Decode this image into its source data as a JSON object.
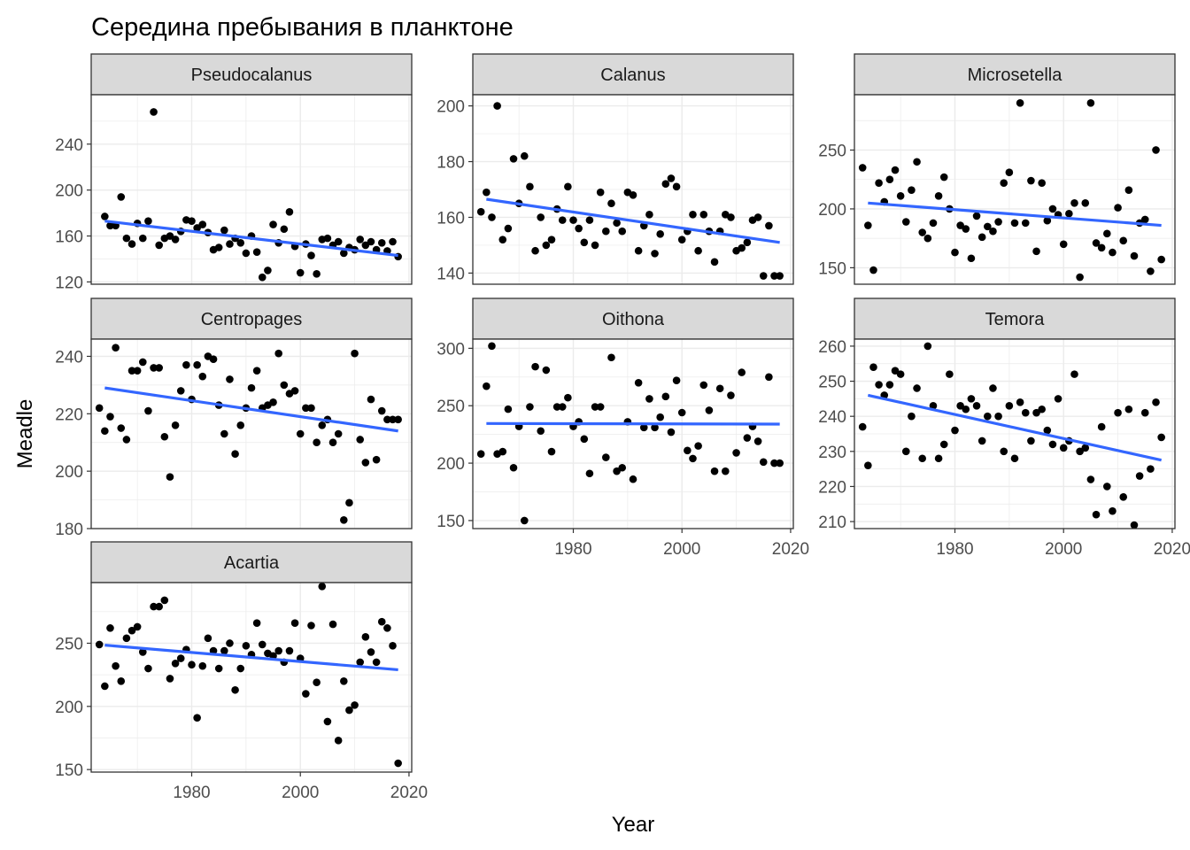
{
  "chart_data": {
    "type": "scatter",
    "title": "Середина пребывания в планктоне",
    "xlabel": "Year",
    "ylabel": "Meadle",
    "x_ticks": [
      1980,
      2000,
      2020
    ],
    "xlim": [
      1961.5,
      2020.5
    ],
    "grid": true,
    "colors": {
      "points": "#000000",
      "trend": "#3366FF",
      "strip_bg": "#D9D9D9",
      "grid": "#EBEBEB",
      "border": "#333333"
    },
    "panels": [
      {
        "name": "Pseudocalanus",
        "ylim": [
          118,
          283
        ],
        "y_ticks": [
          120,
          160,
          200,
          240
        ],
        "trend": [
          [
            1964,
            173
          ],
          [
            2018,
            143
          ]
        ],
        "x": [
          1964,
          1965,
          1966,
          1967,
          1968,
          1969,
          1970,
          1971,
          1972,
          1973,
          1974,
          1975,
          1976,
          1977,
          1978,
          1979,
          1980,
          1981,
          1982,
          1983,
          1984,
          1985,
          1986,
          1987,
          1988,
          1989,
          1990,
          1991,
          1992,
          1993,
          1994,
          1995,
          1996,
          1997,
          1998,
          1999,
          2000,
          2001,
          2002,
          2003,
          2004,
          2005,
          2006,
          2007,
          2008,
          2009,
          2010,
          2011,
          2012,
          2013,
          2014,
          2015,
          2016,
          2017,
          2018
        ],
        "y": [
          177,
          169,
          169,
          194,
          158,
          153,
          171,
          158,
          173,
          268,
          152,
          158,
          160,
          157,
          164,
          174,
          173,
          167,
          170,
          163,
          148,
          150,
          165,
          153,
          158,
          154,
          145,
          160,
          146,
          124,
          130,
          170,
          154,
          166,
          181,
          151,
          128,
          153,
          143,
          127,
          157,
          158,
          152,
          155,
          145,
          150,
          148,
          157,
          152,
          155,
          148,
          154,
          147,
          155,
          142
        ]
      },
      {
        "name": "Calanus",
        "ylim": [
          136,
          204
        ],
        "y_ticks": [
          140,
          160,
          180,
          200
        ],
        "trend": [
          [
            1964,
            166.5
          ],
          [
            2018,
            151
          ]
        ],
        "x": [
          1963,
          1964,
          1965,
          1966,
          1967,
          1968,
          1969,
          1970,
          1971,
          1972,
          1973,
          1974,
          1975,
          1976,
          1977,
          1978,
          1979,
          1980,
          1981,
          1982,
          1983,
          1984,
          1985,
          1986,
          1987,
          1988,
          1989,
          1990,
          1991,
          1992,
          1993,
          1994,
          1995,
          1996,
          1997,
          1998,
          1999,
          2000,
          2001,
          2002,
          2003,
          2004,
          2005,
          2006,
          2007,
          2008,
          2009,
          2010,
          2011,
          2012,
          2013,
          2014,
          2015,
          2016,
          2017,
          2018
        ],
        "y": [
          162,
          169,
          160,
          200,
          152,
          156,
          181,
          165,
          182,
          171,
          148,
          160,
          150,
          152,
          163,
          159,
          171,
          159,
          156,
          151,
          159,
          150,
          169,
          155,
          165,
          158,
          155,
          169,
          168,
          148,
          157,
          161,
          147,
          154,
          172,
          174,
          171,
          152,
          155,
          161,
          148,
          161,
          155,
          144,
          155,
          161,
          160,
          148,
          149,
          151,
          159,
          160,
          139,
          157,
          139,
          139
        ]
      },
      {
        "name": "Microsetella",
        "ylim": [
          136,
          297
        ],
        "y_ticks": [
          150,
          200,
          250
        ],
        "trend": [
          [
            1964,
            205
          ],
          [
            2018,
            186
          ]
        ],
        "x": [
          1963,
          1964,
          1965,
          1966,
          1967,
          1968,
          1969,
          1970,
          1971,
          1972,
          1973,
          1974,
          1975,
          1976,
          1977,
          1978,
          1979,
          1980,
          1981,
          1982,
          1983,
          1984,
          1985,
          1986,
          1987,
          1988,
          1989,
          1990,
          1991,
          1992,
          1993,
          1994,
          1995,
          1996,
          1997,
          1998,
          1999,
          2000,
          2001,
          2002,
          2003,
          2004,
          2005,
          2006,
          2007,
          2008,
          2009,
          2010,
          2011,
          2012,
          2013,
          2014,
          2015,
          2016,
          2017,
          2018
        ],
        "y": [
          235,
          186,
          148,
          222,
          206,
          225,
          233,
          211,
          189,
          216,
          240,
          180,
          175,
          188,
          211,
          227,
          200,
          163,
          186,
          183,
          158,
          194,
          176,
          185,
          181,
          189,
          222,
          231,
          188,
          290,
          188,
          224,
          164,
          222,
          190,
          200,
          195,
          170,
          196,
          205,
          142,
          205,
          290,
          171,
          167,
          179,
          163,
          201,
          173,
          216,
          160,
          188,
          191,
          147,
          250,
          157
        ]
      },
      {
        "name": "Centropages",
        "ylim": [
          180,
          246
        ],
        "y_ticks": [
          180,
          200,
          220,
          240
        ],
        "trend": [
          [
            1964,
            229
          ],
          [
            2018,
            214
          ]
        ],
        "x": [
          1963,
          1964,
          1965,
          1966,
          1967,
          1968,
          1969,
          1970,
          1971,
          1972,
          1973,
          1974,
          1975,
          1976,
          1977,
          1978,
          1979,
          1980,
          1981,
          1982,
          1983,
          1984,
          1985,
          1986,
          1987,
          1988,
          1989,
          1990,
          1991,
          1992,
          1993,
          1994,
          1995,
          1996,
          1997,
          1998,
          1999,
          2000,
          2001,
          2002,
          2003,
          2004,
          2005,
          2006,
          2007,
          2008,
          2009,
          2010,
          2011,
          2012,
          2013,
          2014,
          2015,
          2016,
          2017,
          2018
        ],
        "y": [
          222,
          214,
          219,
          243,
          215,
          211,
          235,
          235,
          238,
          221,
          236,
          236,
          212,
          198,
          216,
          228,
          237,
          225,
          237,
          233,
          240,
          239,
          223,
          213,
          232,
          206,
          216,
          222,
          229,
          235,
          222,
          223,
          224,
          241,
          230,
          227,
          228,
          213,
          222,
          222,
          210,
          216,
          218,
          210,
          213,
          183,
          189,
          241,
          211,
          203,
          225,
          204,
          221,
          218,
          218,
          218
        ]
      },
      {
        "name": "Oithona",
        "ylim": [
          143,
          308
        ],
        "y_ticks": [
          150,
          200,
          250,
          300
        ],
        "trend": [
          [
            1964,
            234.5
          ],
          [
            2018,
            234
          ]
        ],
        "x": [
          1963,
          1964,
          1965,
          1966,
          1967,
          1968,
          1969,
          1970,
          1971,
          1972,
          1973,
          1974,
          1975,
          1976,
          1977,
          1978,
          1979,
          1980,
          1981,
          1982,
          1983,
          1984,
          1985,
          1986,
          1987,
          1988,
          1989,
          1990,
          1991,
          1992,
          1993,
          1994,
          1995,
          1996,
          1997,
          1998,
          1999,
          2000,
          2001,
          2002,
          2003,
          2004,
          2005,
          2006,
          2007,
          2008,
          2009,
          2010,
          2011,
          2012,
          2013,
          2014,
          2015,
          2016,
          2017,
          2018
        ],
        "y": [
          208,
          267,
          302,
          208,
          210,
          247,
          196,
          232,
          150,
          249,
          284,
          228,
          281,
          210,
          249,
          249,
          257,
          232,
          236,
          221,
          191,
          249,
          249,
          205,
          292,
          193,
          196,
          236,
          186,
          270,
          231,
          256,
          231,
          240,
          258,
          227,
          272,
          244,
          211,
          204,
          215,
          268,
          246,
          193,
          265,
          193,
          259,
          209,
          279,
          222,
          232,
          219,
          201,
          275,
          200,
          200
        ]
      },
      {
        "name": "Temora",
        "ylim": [
          208,
          262
        ],
        "y_ticks": [
          210,
          220,
          230,
          240,
          250,
          260
        ],
        "trend": [
          [
            1964,
            246
          ],
          [
            2018,
            227.5
          ]
        ],
        "x": [
          1963,
          1964,
          1965,
          1966,
          1967,
          1968,
          1969,
          1970,
          1971,
          1972,
          1973,
          1974,
          1975,
          1976,
          1977,
          1978,
          1979,
          1980,
          1981,
          1982,
          1983,
          1984,
          1985,
          1986,
          1987,
          1988,
          1989,
          1990,
          1991,
          1992,
          1993,
          1994,
          1995,
          1996,
          1997,
          1998,
          1999,
          2000,
          2001,
          2002,
          2003,
          2004,
          2005,
          2006,
          2007,
          2008,
          2009,
          2010,
          2011,
          2012,
          2013,
          2014,
          2015,
          2016,
          2017,
          2018
        ],
        "y": [
          237,
          226,
          254,
          249,
          246,
          249,
          253,
          252,
          230,
          240,
          248,
          228,
          260,
          243,
          228,
          232,
          252,
          236,
          243,
          242,
          245,
          243,
          233,
          240,
          248,
          240,
          230,
          243,
          228,
          244,
          241,
          233,
          241,
          242,
          236,
          232,
          245,
          231,
          233,
          252,
          230,
          231,
          222,
          212,
          237,
          220,
          213,
          241,
          217,
          242,
          209,
          223,
          241,
          225,
          244,
          234
        ]
      },
      {
        "name": "Acartia",
        "ylim": [
          148,
          298
        ],
        "y_ticks": [
          150,
          200,
          250
        ],
        "trend": [
          [
            1964,
            248.5
          ],
          [
            2018,
            229
          ]
        ],
        "x": [
          1963,
          1964,
          1965,
          1966,
          1967,
          1968,
          1969,
          1970,
          1971,
          1972,
          1973,
          1974,
          1975,
          1976,
          1977,
          1978,
          1979,
          1980,
          1981,
          1982,
          1983,
          1984,
          1985,
          1986,
          1987,
          1988,
          1989,
          1990,
          1991,
          1992,
          1993,
          1994,
          1995,
          1996,
          1997,
          1998,
          1999,
          2000,
          2001,
          2002,
          2003,
          2004,
          2005,
          2006,
          2007,
          2008,
          2009,
          2010,
          2011,
          2012,
          2013,
          2014,
          2015,
          2016,
          2017,
          2018
        ],
        "y": [
          249,
          216,
          262,
          232,
          220,
          254,
          260,
          263,
          243,
          230,
          279,
          279,
          284,
          222,
          234,
          238,
          245,
          233,
          191,
          232,
          254,
          244,
          230,
          244,
          250,
          213,
          230,
          248,
          241,
          266,
          249,
          242,
          240,
          244,
          235,
          244,
          266,
          238,
          210,
          264,
          219,
          295,
          188,
          265,
          173,
          220,
          197,
          201,
          235,
          255,
          243,
          235,
          267,
          262,
          248,
          155
        ]
      }
    ]
  }
}
